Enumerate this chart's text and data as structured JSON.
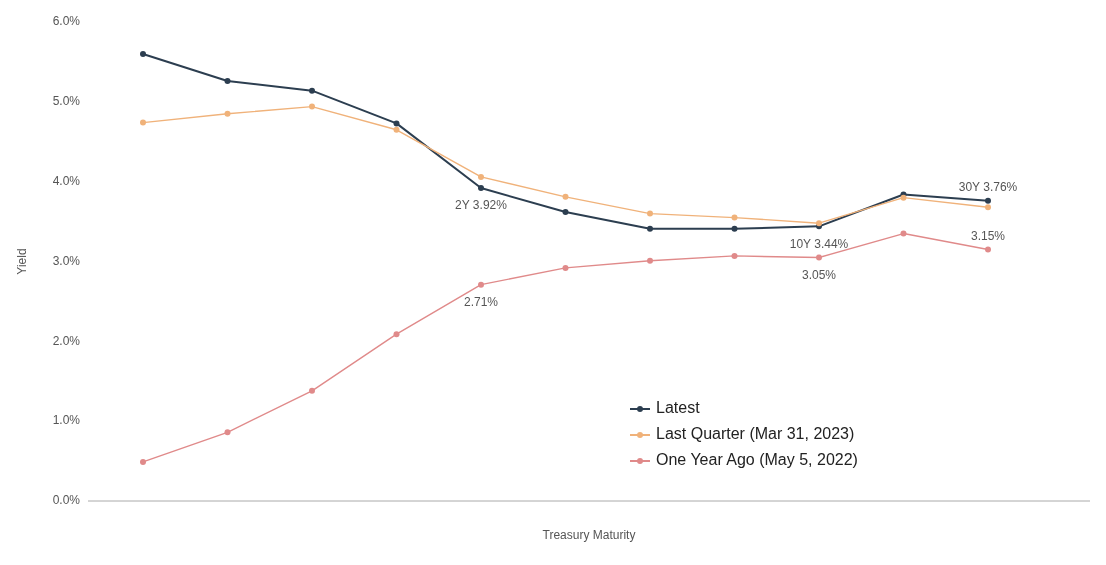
{
  "chart_data": {
    "type": "line",
    "xlabel": "Treasury Maturity",
    "ylabel": "Yield",
    "categories": [
      null,
      null,
      null,
      null,
      null,
      null,
      null,
      null,
      null,
      null,
      null
    ],
    "ylim": [
      0,
      6
    ],
    "yticks": [
      {
        "value": 0,
        "label": "0.0%"
      },
      {
        "value": 1,
        "label": "1.0%"
      },
      {
        "value": 2,
        "label": "2.0%"
      },
      {
        "value": 3,
        "label": "3.0%"
      },
      {
        "value": 4,
        "label": "4.0%"
      },
      {
        "value": 5,
        "label": "5.0%"
      },
      {
        "value": 6,
        "label": "6.0%"
      }
    ],
    "tick_labels": "y",
    "grid": false,
    "legend": "bottom right",
    "marker": "circle",
    "line_style": "solid",
    "series": [
      {
        "name": "Latest",
        "color": "#2c3e50",
        "values": [
          5.6,
          5.26,
          5.14,
          4.73,
          3.92,
          3.62,
          3.41,
          3.41,
          3.44,
          3.84,
          3.76
        ]
      },
      {
        "name": "Last Quarter (Mar 31, 2023)",
        "color": "#f0b27a",
        "values": [
          4.74,
          4.85,
          4.94,
          4.65,
          4.06,
          3.81,
          3.6,
          3.55,
          3.48,
          3.8,
          3.68
        ]
      },
      {
        "name": "One Year Ago (May 5, 2022)",
        "color": "#e08a8a",
        "values": [
          0.49,
          0.86,
          1.38,
          2.09,
          2.71,
          2.92,
          3.01,
          3.07,
          3.05,
          3.35,
          3.15
        ]
      }
    ],
    "annotations": [
      {
        "text": "2Y 3.92%",
        "y": 3.92
      },
      {
        "text": "2.71%",
        "y": 2.71
      },
      {
        "text": "10Y 3.44%",
        "y": 3.44
      },
      {
        "text": "3.05%",
        "y": 3.05
      },
      {
        "text": "30Y 3.76%",
        "y": 3.76
      },
      {
        "text": "3.15%",
        "y": 3.15
      }
    ]
  }
}
